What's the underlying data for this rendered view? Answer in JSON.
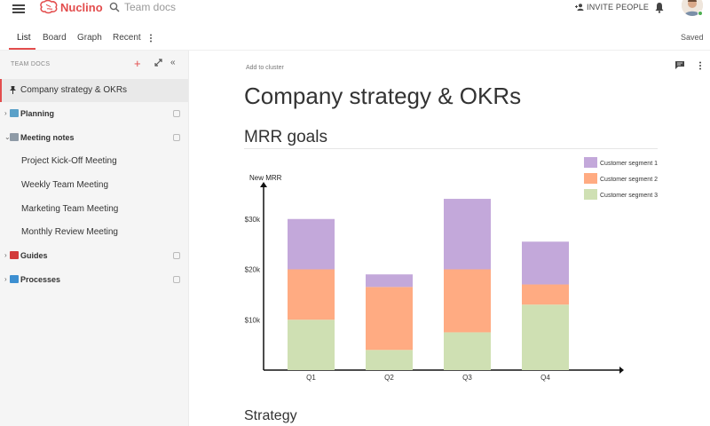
{
  "topbar": {
    "brand": "Nuclino",
    "search_text": "Team docs",
    "invite_label": "INVITE PEOPLE"
  },
  "tabs": {
    "items": [
      "List",
      "Board",
      "Graph",
      "Recent"
    ],
    "active": "List",
    "status": "Saved"
  },
  "sidebar": {
    "header": "TEAM DOCS",
    "items": [
      {
        "label": "Company strategy & OKRs",
        "selected": true
      },
      {
        "label": "Planning",
        "icon": "map-emoji"
      },
      {
        "label": "Meeting notes",
        "icon": "notepad-emoji"
      },
      {
        "label": "Project Kick-Off Meeting"
      },
      {
        "label": "Weekly Team Meeting"
      },
      {
        "label": "Marketing Team Meeting"
      },
      {
        "label": "Monthly Review Meeting"
      },
      {
        "label": "Guides",
        "icon": "book-emoji"
      },
      {
        "label": "Processes",
        "icon": "cycle-emoji"
      }
    ]
  },
  "main": {
    "add_to_cluster": "Add to cluster",
    "title": "Company strategy & OKRs",
    "section_1": "MRR goals",
    "section_2": "Strategy"
  },
  "colors": {
    "accent": "#e34d4d",
    "segment_1": "#c3a8da",
    "segment_2": "#ffab82",
    "segment_3": "#cfe0b3"
  },
  "chart_data": {
    "type": "bar",
    "stacked": true,
    "title": "",
    "ylabel": "New MRR",
    "xlabel": "",
    "categories": [
      "Q1",
      "Q2",
      "Q3",
      "Q4"
    ],
    "yticks": [
      "$10k",
      "$20k",
      "$30k"
    ],
    "ylim": [
      0,
      40000
    ],
    "series": [
      {
        "name": "Customer segment 3",
        "values": [
          10000,
          4000,
          7500,
          13000
        ]
      },
      {
        "name": "Customer segment 2",
        "values": [
          10000,
          12500,
          12500,
          4000
        ]
      },
      {
        "name": "Customer segment 1",
        "values": [
          10000,
          2500,
          14000,
          8500
        ]
      }
    ],
    "legend": [
      "Customer segment 1",
      "Customer segment 2",
      "Customer segment 3"
    ],
    "legend_position": "top-right"
  }
}
